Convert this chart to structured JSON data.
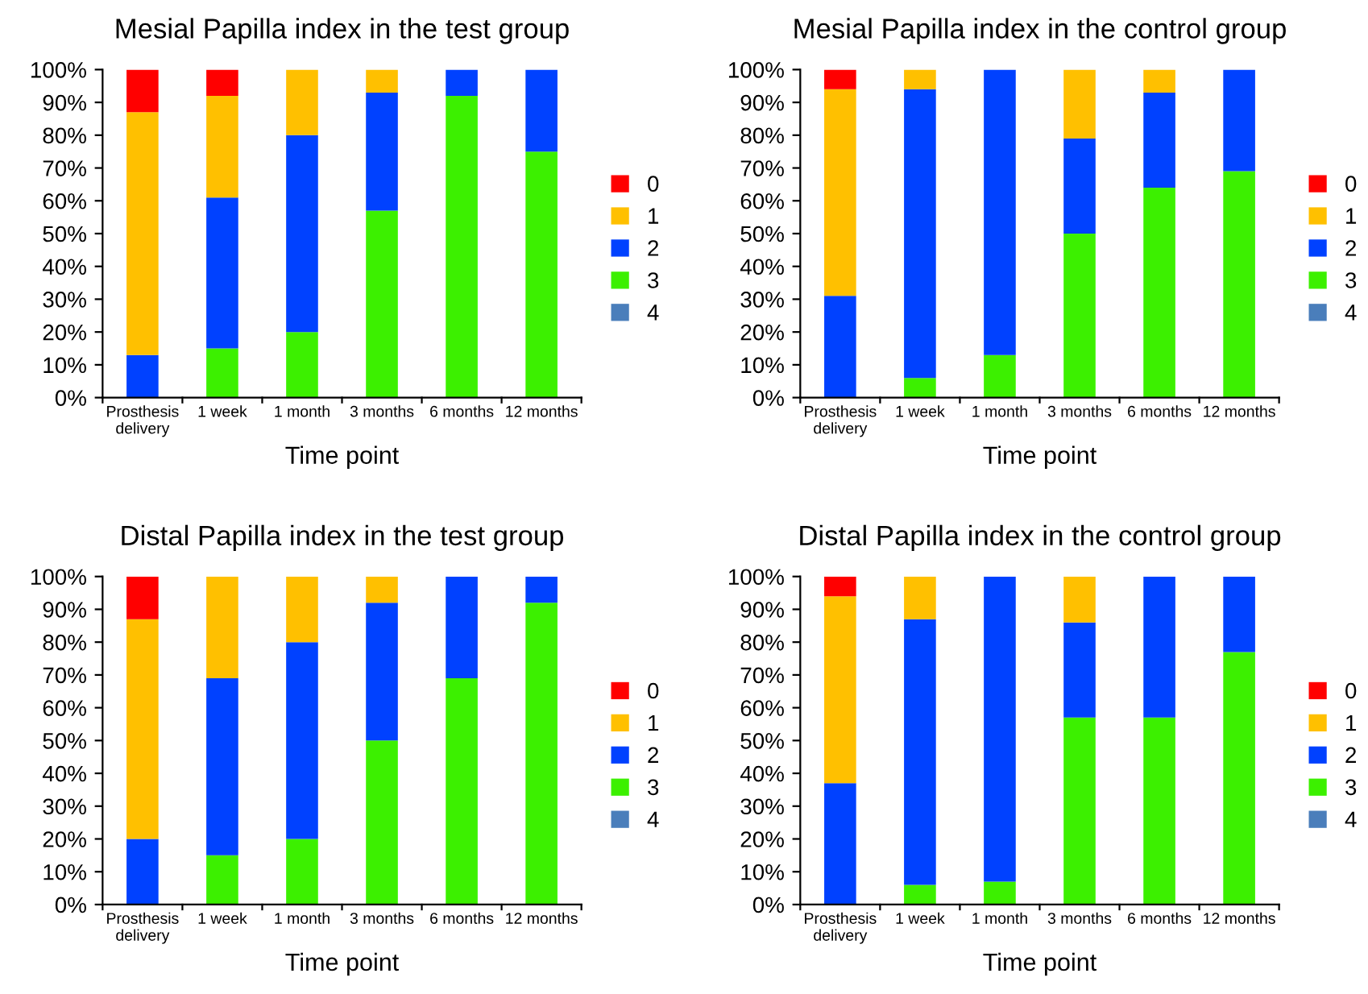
{
  "chart_data": [
    {
      "type": "bar",
      "title": "Mesial Papilla index in the test group",
      "xlabel": "Time point",
      "stacked": true,
      "legend": "right",
      "grid": false,
      "categories": [
        "Prosthesis\ndelivery",
        "1 week",
        "1 month",
        "3 months",
        "6 months",
        "12 months"
      ],
      "ylim": [
        0,
        100
      ],
      "yticks": [
        {
          "value": 0,
          "label": "0%"
        },
        {
          "value": 10,
          "label": "10%"
        },
        {
          "value": 20,
          "label": "20%"
        },
        {
          "value": 30,
          "label": "30%"
        },
        {
          "value": 40,
          "label": "40%"
        },
        {
          "value": 50,
          "label": "50%"
        },
        {
          "value": 60,
          "label": "60%"
        },
        {
          "value": 70,
          "label": "70%"
        },
        {
          "value": 80,
          "label": "80%"
        },
        {
          "value": 90,
          "label": "90%"
        },
        {
          "value": 100,
          "label": "100%"
        }
      ],
      "series": [
        {
          "name": "4",
          "color": "#4a7ebb",
          "values": [
            0,
            0,
            0,
            0,
            0,
            0
          ]
        },
        {
          "name": "3",
          "color": "#3cf000",
          "values": [
            0,
            15,
            20,
            57,
            92,
            75
          ]
        },
        {
          "name": "2",
          "color": "#0041ff",
          "values": [
            13,
            46,
            60,
            36,
            8,
            25
          ]
        },
        {
          "name": "1",
          "color": "#ffc000",
          "values": [
            74,
            31,
            20,
            7,
            0,
            0
          ]
        },
        {
          "name": "0",
          "color": "#ff0000",
          "values": [
            13,
            8,
            0,
            0,
            0,
            0
          ]
        }
      ]
    },
    {
      "type": "bar",
      "title": "Mesial Papilla index in the control group",
      "xlabel": "Time point",
      "stacked": true,
      "legend": "right",
      "grid": false,
      "categories": [
        "Prosthesis\ndelivery",
        "1 week",
        "1 month",
        "3 months",
        "6 months",
        "12 months"
      ],
      "ylim": [
        0,
        100
      ],
      "yticks": [
        {
          "value": 0,
          "label": "0%"
        },
        {
          "value": 10,
          "label": "10%"
        },
        {
          "value": 20,
          "label": "20%"
        },
        {
          "value": 30,
          "label": "30%"
        },
        {
          "value": 40,
          "label": "40%"
        },
        {
          "value": 50,
          "label": "50%"
        },
        {
          "value": 60,
          "label": "60%"
        },
        {
          "value": 70,
          "label": "70%"
        },
        {
          "value": 80,
          "label": "80%"
        },
        {
          "value": 90,
          "label": "90%"
        },
        {
          "value": 100,
          "label": "100%"
        }
      ],
      "series": [
        {
          "name": "4",
          "color": "#4a7ebb",
          "values": [
            0,
            0,
            0,
            0,
            0,
            0
          ]
        },
        {
          "name": "3",
          "color": "#3cf000",
          "values": [
            0,
            6,
            13,
            50,
            64,
            69
          ]
        },
        {
          "name": "2",
          "color": "#0041ff",
          "values": [
            31,
            88,
            87,
            29,
            29,
            31
          ]
        },
        {
          "name": "1",
          "color": "#ffc000",
          "values": [
            63,
            6,
            0,
            21,
            7,
            0
          ]
        },
        {
          "name": "0",
          "color": "#ff0000",
          "values": [
            6,
            0,
            0,
            0,
            0,
            0
          ]
        }
      ]
    },
    {
      "type": "bar",
      "title": "Distal Papilla index in the test group",
      "xlabel": "Time point",
      "stacked": true,
      "legend": "right",
      "grid": false,
      "categories": [
        "Prosthesis\ndelivery",
        "1 week",
        "1 month",
        "3 months",
        "6 months",
        "12 months"
      ],
      "ylim": [
        0,
        100
      ],
      "yticks": [
        {
          "value": 0,
          "label": "0%"
        },
        {
          "value": 10,
          "label": "10%"
        },
        {
          "value": 20,
          "label": "20%"
        },
        {
          "value": 30,
          "label": "30%"
        },
        {
          "value": 40,
          "label": "40%"
        },
        {
          "value": 50,
          "label": "50%"
        },
        {
          "value": 60,
          "label": "60%"
        },
        {
          "value": 70,
          "label": "70%"
        },
        {
          "value": 80,
          "label": "80%"
        },
        {
          "value": 90,
          "label": "90%"
        },
        {
          "value": 100,
          "label": "100%"
        }
      ],
      "series": [
        {
          "name": "4",
          "color": "#4a7ebb",
          "values": [
            0,
            0,
            0,
            0,
            0,
            0
          ]
        },
        {
          "name": "3",
          "color": "#3cf000",
          "values": [
            0,
            15,
            20,
            50,
            69,
            92
          ]
        },
        {
          "name": "2",
          "color": "#0041ff",
          "values": [
            20,
            54,
            60,
            42,
            31,
            8
          ]
        },
        {
          "name": "1",
          "color": "#ffc000",
          "values": [
            67,
            31,
            20,
            8,
            0,
            0
          ]
        },
        {
          "name": "0",
          "color": "#ff0000",
          "values": [
            13,
            0,
            0,
            0,
            0,
            0
          ]
        }
      ]
    },
    {
      "type": "bar",
      "title": "Distal Papilla index in the control group",
      "xlabel": "Time point",
      "stacked": true,
      "legend": "right",
      "grid": false,
      "categories": [
        "Prosthesis\ndelivery",
        "1 week",
        "1 month",
        "3 months",
        "6 months",
        "12 months"
      ],
      "ylim": [
        0,
        100
      ],
      "yticks": [
        {
          "value": 0,
          "label": "0%"
        },
        {
          "value": 10,
          "label": "10%"
        },
        {
          "value": 20,
          "label": "20%"
        },
        {
          "value": 30,
          "label": "30%"
        },
        {
          "value": 40,
          "label": "40%"
        },
        {
          "value": 50,
          "label": "50%"
        },
        {
          "value": 60,
          "label": "60%"
        },
        {
          "value": 70,
          "label": "70%"
        },
        {
          "value": 80,
          "label": "80%"
        },
        {
          "value": 90,
          "label": "90%"
        },
        {
          "value": 100,
          "label": "100%"
        }
      ],
      "series": [
        {
          "name": "4",
          "color": "#4a7ebb",
          "values": [
            0,
            0,
            0,
            0,
            0,
            0
          ]
        },
        {
          "name": "3",
          "color": "#3cf000",
          "values": [
            0,
            6,
            7,
            57,
            57,
            77
          ]
        },
        {
          "name": "2",
          "color": "#0041ff",
          "values": [
            37,
            81,
            93,
            29,
            43,
            23
          ]
        },
        {
          "name": "1",
          "color": "#ffc000",
          "values": [
            57,
            13,
            0,
            14,
            0,
            0
          ]
        },
        {
          "name": "0",
          "color": "#ff0000",
          "values": [
            6,
            0,
            0,
            0,
            0,
            0
          ]
        }
      ]
    }
  ]
}
